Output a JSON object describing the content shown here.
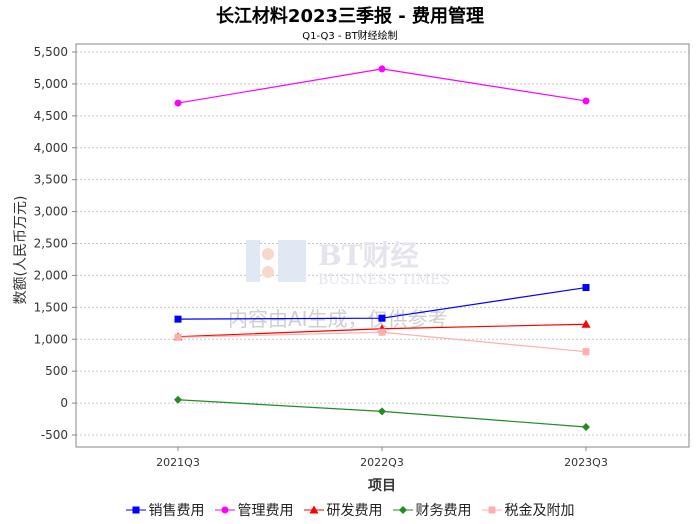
{
  "chart_data": {
    "type": "line",
    "title": "长江材料2023三季报 - 费用管理",
    "subtitle": "Q1-Q3 - BT财经绘制",
    "xlabel": "项目",
    "ylabel": "数额(人民币万元)",
    "categories": [
      "2021Q3",
      "2022Q3",
      "2023Q3"
    ],
    "ylim": [
      -500,
      5500
    ],
    "yticks": [
      -500,
      0,
      500,
      1000,
      1500,
      2000,
      2500,
      3000,
      3500,
      4000,
      4500,
      5000,
      5500
    ],
    "ytick_labels": [
      "-500",
      "0",
      "500",
      "1,000",
      "1,500",
      "2,000",
      "2,500",
      "3,000",
      "3,500",
      "4,000",
      "4,500",
      "5,000",
      "5,500"
    ],
    "grid": true,
    "legend_position": "bottom",
    "series": [
      {
        "name": "销售费用",
        "color": "#0000ff",
        "marker": "square",
        "values": [
          1315,
          1330,
          1810
        ]
      },
      {
        "name": "管理费用",
        "color": "#ff00ff",
        "marker": "circle",
        "values": [
          4700,
          5235,
          4733
        ]
      },
      {
        "name": "研发费用",
        "color": "#ff0000",
        "marker": "triangle",
        "values": [
          1040,
          1165,
          1235
        ]
      },
      {
        "name": "财务费用",
        "color": "#228b22",
        "marker": "diamond",
        "values": [
          52,
          -130,
          -375
        ]
      },
      {
        "name": "税金及附加",
        "color": "#ffafaf",
        "marker": "square",
        "values": [
          1030,
          1110,
          805
        ]
      }
    ]
  },
  "watermark": {
    "logo": "BT财经",
    "logo_sub": "BUSINESS TIMES",
    "notice": "内容由AI生成，仅供参考"
  }
}
